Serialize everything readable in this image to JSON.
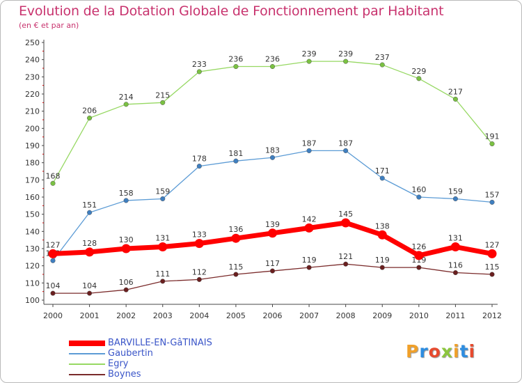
{
  "header": {
    "title": "Evolution de la Dotation Globale de Fonctionnement par Habitant",
    "subtitle": "(en € et par an)"
  },
  "logo": {
    "letters": [
      "P",
      "r",
      "o",
      "x",
      "i",
      "t",
      "i"
    ],
    "colors": [
      "#f0a02a",
      "#2e8de0",
      "#e74a2e",
      "#8cc63e",
      "#f0a02a",
      "#2e8de0",
      "#e74a2e"
    ]
  },
  "chart_data": {
    "type": "line",
    "x": [
      "2000",
      "2001",
      "2002",
      "2003",
      "2004",
      "2005",
      "2006",
      "2007",
      "2008",
      "2009",
      "2010",
      "2011",
      "2012"
    ],
    "ylim": [
      100,
      250
    ],
    "yticks": [
      100,
      110,
      120,
      130,
      140,
      150,
      160,
      170,
      180,
      190,
      200,
      210,
      220,
      230,
      240,
      250
    ],
    "grid": false,
    "legend_position": "bottom-left",
    "series": [
      {
        "name": "Egry",
        "color": "#96d862",
        "marker": "#7ac142",
        "width": 1.3,
        "values": [
          168,
          206,
          214,
          215,
          233,
          236,
          236,
          239,
          239,
          237,
          229,
          217,
          191
        ]
      },
      {
        "name": "Gaubertin",
        "color": "#5b9bd5",
        "marker": "#3f7fc0",
        "width": 1.3,
        "values": [
          123,
          151,
          158,
          159,
          178,
          181,
          183,
          187,
          187,
          171,
          160,
          159,
          157
        ]
      },
      {
        "name": "Boynes",
        "color": "#7a2a2a",
        "marker": "#6a1f1f",
        "width": 1.3,
        "values": [
          104,
          104,
          106,
          111,
          112,
          115,
          117,
          119,
          121,
          119,
          119,
          116,
          115
        ]
      },
      {
        "name": "BARVILLE-EN-GâTINAIS",
        "color": "#ff0000",
        "marker": "#ff0000",
        "width": 7,
        "values": [
          127,
          128,
          130,
          131,
          133,
          136,
          139,
          142,
          145,
          138,
          126,
          131,
          127
        ]
      }
    ],
    "legend_order": [
      "BARVILLE-EN-GâTINAIS",
      "Gaubertin",
      "Egry",
      "Boynes"
    ]
  }
}
